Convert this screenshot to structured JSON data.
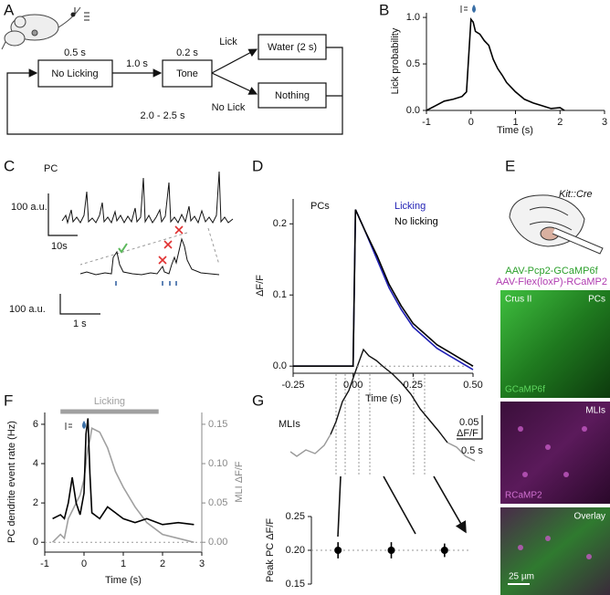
{
  "figure": {
    "panel_labels": [
      "A",
      "B",
      "C",
      "D",
      "E",
      "F",
      "G"
    ]
  },
  "diagram": {
    "boxes": [
      "No Licking",
      "Tone",
      "Water (2 s)",
      "Nothing"
    ],
    "intervals": [
      "0.5 s",
      "1.0 s",
      "0.2 s"
    ],
    "branches": [
      "Lick",
      "No Lick"
    ],
    "iti": "2.0 - 2.5 s"
  },
  "traces": {
    "c_label": "PC",
    "c_scale_y": "100 a.u.",
    "c_scale_x": "10s",
    "c_zoom_scale_y": "100 a.u.",
    "c_zoom_scale_x": "1 s",
    "g_label": "MLIs",
    "g_scale_y": [
      "0.05",
      "ΔF/F"
    ],
    "g_scale_x": "0.5 s"
  },
  "imaging": {
    "mouse_line": "Kit::Cre",
    "virus": [
      "AAV-Pcp2-GCaMP6f",
      "AAV-Flex(loxP)-RCaMP2"
    ],
    "region": "Crus II",
    "cells_top": "PCs",
    "indicator_top": "GCaMP6f",
    "cells_mid": "MLIs",
    "indicator_mid": "RCaMP2",
    "overlay": "Overlay",
    "scale": "25 µm"
  },
  "chart_data": [
    {
      "type": "line",
      "xlabel": "Time (s)",
      "ylabel": "Lick probability",
      "color": "#000000",
      "x": [
        -1,
        -0.8,
        -0.6,
        -0.4,
        -0.2,
        -0.1,
        0,
        0.05,
        0.1,
        0.2,
        0.3,
        0.4,
        0.5,
        0.6,
        0.7,
        0.8,
        0.9,
        1.0,
        1.2,
        1.4,
        1.6,
        1.8,
        2.0,
        2.1
      ],
      "values": [
        0,
        0.05,
        0.1,
        0.12,
        0.15,
        0.2,
        0.98,
        0.95,
        0.85,
        0.82,
        0.75,
        0.7,
        0.55,
        0.45,
        0.38,
        0.3,
        0.25,
        0.2,
        0.12,
        0.08,
        0.05,
        0.02,
        0.03,
        0
      ],
      "xlim": [
        -1,
        3
      ],
      "ylim": [
        0,
        1.05
      ],
      "xticks": [
        -1,
        0,
        1,
        2,
        3
      ],
      "yticks": [
        {
          "value": 0,
          "label": "0.0"
        },
        0.5,
        {
          "value": 1,
          "label": "1.0"
        }
      ]
    },
    {
      "type": "line",
      "title": "PCs",
      "xlabel": "Time (s)",
      "ylabel": "ΔF/F",
      "x": [
        -0.25,
        -0.1,
        0,
        0.01,
        0.05,
        0.1,
        0.15,
        0.2,
        0.25,
        0.3,
        0.35,
        0.4,
        0.45,
        0.5
      ],
      "series": [
        {
          "name": "Licking",
          "color": "#1f1fb4",
          "values": [
            0,
            0,
            0,
            0.22,
            0.19,
            0.15,
            0.11,
            0.08,
            0.055,
            0.04,
            0.025,
            0.015,
            0.005,
            -0.005
          ]
        },
        {
          "name": "No licking",
          "color": "#000000",
          "values": [
            0,
            0,
            0,
            0.22,
            0.19,
            0.155,
            0.115,
            0.085,
            0.06,
            0.045,
            0.03,
            0.02,
            0.01,
            0
          ]
        }
      ],
      "hline": 0,
      "xlim": [
        -0.25,
        0.5
      ],
      "ylim": [
        -0.01,
        0.235
      ],
      "xticks": [
        -0.25,
        {
          "value": 0,
          "label": "0.00"
        },
        0.25,
        {
          "value": 0.5,
          "label": "0.50"
        }
      ],
      "yticks": [
        {
          "value": 0,
          "label": "0.0"
        },
        0.1,
        0.2
      ]
    },
    {
      "type": "line",
      "xlabel": "Time (s)",
      "ylabel": "PC dendrite event rate (Hz)",
      "y2label": "MLI ΔF/F",
      "span": [
        -0.6,
        1.9
      ],
      "span_label": "Licking",
      "span_color": "#a0a0a0",
      "hline": 0,
      "x": [
        -0.8,
        -0.6,
        -0.5,
        -0.4,
        -0.3,
        -0.2,
        -0.1,
        0,
        0.05,
        0.1,
        0.15,
        0.2,
        0.4,
        0.6,
        0.8,
        1.0,
        1.3,
        1.6,
        2.0,
        2.4,
        2.8
      ],
      "series": [
        {
          "color": "#a0a0a0",
          "axis": "y2",
          "values": [
            0,
            0.01,
            0.005,
            0.03,
            0.04,
            0.05,
            0.06,
            0.08,
            0.1,
            0.12,
            0.13,
            0.145,
            0.14,
            0.12,
            0.09,
            0.07,
            0.045,
            0.025,
            0.01,
            0.005,
            0
          ]
        },
        {
          "color": "#000000",
          "values": [
            1.2,
            1.4,
            1.2,
            2.0,
            3.3,
            2.0,
            1.4,
            2.5,
            5.5,
            6.3,
            3.5,
            1.5,
            1.2,
            1.8,
            1.5,
            1.2,
            1.0,
            1.2,
            0.9,
            1.0,
            0.9
          ]
        }
      ],
      "xlim": [
        -1,
        3
      ],
      "ylim": [
        -0.5,
        6.6
      ],
      "y2lim": [
        -0.0125,
        0.165
      ],
      "xticks": [
        -1,
        0,
        1,
        2,
        3
      ],
      "yticks": [
        0,
        2,
        4,
        6
      ],
      "y2ticks": [
        {
          "value": 0,
          "label": "0.00"
        },
        0.05,
        {
          "value": 0.1,
          "label": "0.10"
        },
        0.15
      ]
    },
    {
      "type": "errorbar",
      "ylabel": "Peak PC ΔF/F",
      "color": "#000000",
      "hline": 0.2,
      "categories": [
        null,
        null,
        null
      ],
      "values": [
        0.2,
        0.2,
        0.2
      ],
      "errors": [
        0.012,
        0.012,
        0.01
      ],
      "ylim": [
        0.15,
        0.25
      ],
      "yticks": [
        0.15,
        {
          "value": 0.2,
          "label": "0.20"
        },
        0.25
      ]
    }
  ]
}
